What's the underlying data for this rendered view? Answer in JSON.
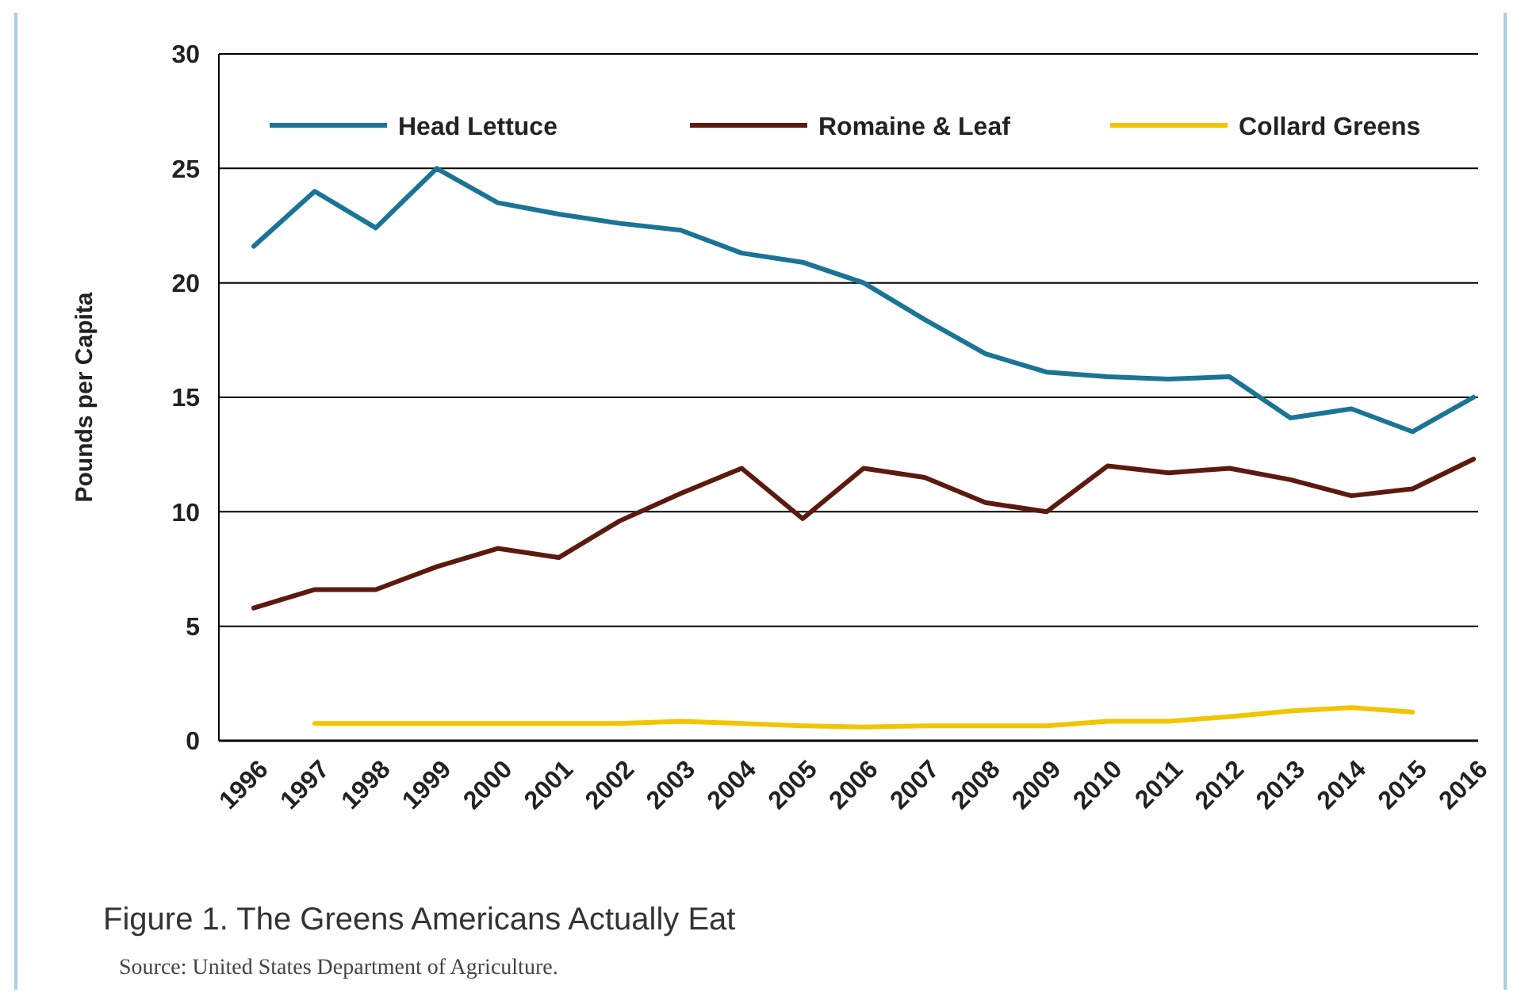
{
  "chart_data": {
    "type": "line",
    "title": "Figure 1. The Greens Americans Actually Eat",
    "ylabel": "Pounds per Capita",
    "annotations": [
      "Source: United States Department of Agriculture."
    ],
    "categories": [
      "1996",
      "1997",
      "1998",
      "1999",
      "2000",
      "2001",
      "2002",
      "2003",
      "2004",
      "2005",
      "2006",
      "2007",
      "2008",
      "2009",
      "2010",
      "2011",
      "2012",
      "2013",
      "2014",
      "2015",
      "2016"
    ],
    "series": [
      {
        "name": "Head Lettuce",
        "color": "#1a7496",
        "values": [
          21.6,
          24.0,
          22.4,
          25.0,
          23.5,
          23.0,
          22.6,
          22.3,
          21.3,
          20.9,
          20.0,
          18.4,
          16.9,
          16.1,
          15.9,
          15.8,
          15.9,
          14.1,
          14.5,
          13.5,
          15.0
        ]
      },
      {
        "name": "Romaine & Leaf",
        "color": "#5c1a0e",
        "values": [
          5.8,
          6.6,
          6.6,
          7.6,
          8.4,
          8.0,
          9.6,
          10.8,
          11.9,
          9.7,
          11.9,
          11.5,
          10.4,
          10.0,
          12.0,
          11.7,
          11.9,
          11.4,
          10.7,
          11.0,
          12.3
        ]
      },
      {
        "name": "Collard Greens",
        "color": "#f2c500",
        "values": [
          null,
          0.75,
          0.75,
          0.75,
          0.75,
          0.75,
          0.75,
          0.85,
          0.75,
          0.65,
          0.6,
          0.65,
          0.65,
          0.65,
          0.85,
          0.85,
          1.05,
          1.3,
          1.45,
          1.25,
          null
        ]
      }
    ],
    "ylim": [
      0,
      30
    ],
    "yticks": [
      0,
      5,
      10,
      15,
      20,
      25,
      30
    ],
    "grid": "y",
    "legend": "top",
    "marker": "none",
    "line_style": "solid"
  }
}
